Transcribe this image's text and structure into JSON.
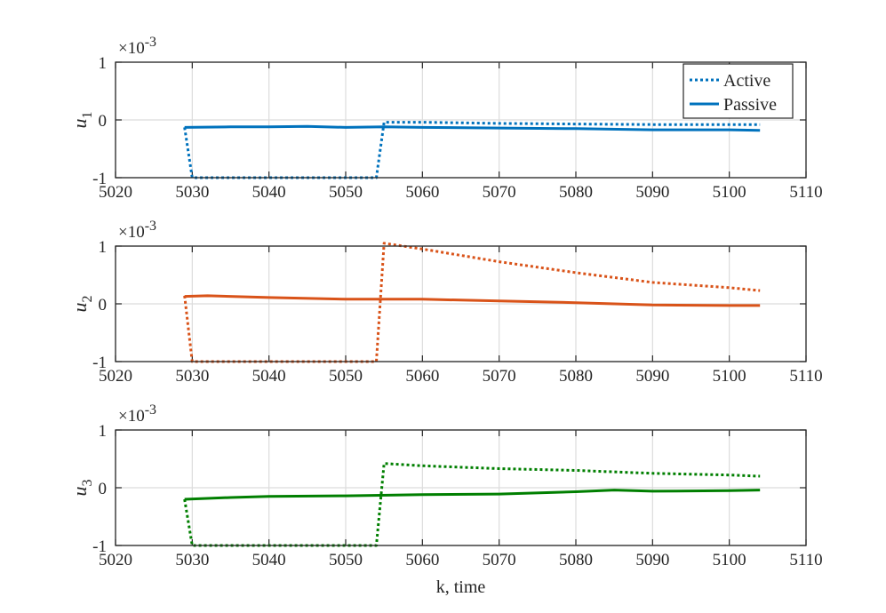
{
  "chart_data": [
    {
      "type": "line",
      "ylabel": "u",
      "ylabel_sub": "1",
      "exponent_label": "×10",
      "exponent_power": "-3",
      "xlim": [
        5020,
        5110
      ],
      "ylim": [
        -1,
        1
      ],
      "x_ticks": [
        "5020",
        "5030",
        "5040",
        "5050",
        "5060",
        "5070",
        "5080",
        "5090",
        "5100",
        "5110"
      ],
      "y_ticks": [
        "-1",
        "0",
        "1"
      ],
      "color": "#0072BD",
      "legend": {
        "position": "top-right",
        "entries": [
          "Active",
          "Passive"
        ]
      },
      "series": [
        {
          "name": "Active",
          "style": "dotted",
          "points": [
            [
              5029,
              -0.13
            ],
            [
              5030,
              -1
            ],
            [
              5054,
              -1
            ],
            [
              5055,
              -0.04
            ],
            [
              5060,
              -0.04
            ],
            [
              5070,
              -0.06
            ],
            [
              5080,
              -0.07
            ],
            [
              5090,
              -0.08
            ],
            [
              5104,
              -0.08
            ]
          ]
        },
        {
          "name": "Passive",
          "style": "solid",
          "points": [
            [
              5029,
              -0.13
            ],
            [
              5035,
              -0.12
            ],
            [
              5040,
              -0.12
            ],
            [
              5045,
              -0.11
            ],
            [
              5050,
              -0.13
            ],
            [
              5055,
              -0.12
            ],
            [
              5060,
              -0.13
            ],
            [
              5070,
              -0.14
            ],
            [
              5080,
              -0.15
            ],
            [
              5090,
              -0.17
            ],
            [
              5100,
              -0.17
            ],
            [
              5104,
              -0.18
            ]
          ]
        }
      ]
    },
    {
      "type": "line",
      "ylabel": "u",
      "ylabel_sub": "2",
      "exponent_label": "×10",
      "exponent_power": "-3",
      "xlim": [
        5020,
        5110
      ],
      "ylim": [
        -1,
        1
      ],
      "x_ticks": [
        "5020",
        "5030",
        "5040",
        "5050",
        "5060",
        "5070",
        "5080",
        "5090",
        "5100",
        "5110"
      ],
      "y_ticks": [
        "-1",
        "0",
        "1"
      ],
      "color": "#D95319",
      "series": [
        {
          "name": "Active",
          "style": "dotted",
          "points": [
            [
              5029,
              0.14
            ],
            [
              5030,
              -1
            ],
            [
              5054,
              -1
            ],
            [
              5055,
              1.05
            ],
            [
              5060,
              0.95
            ],
            [
              5070,
              0.73
            ],
            [
              5080,
              0.54
            ],
            [
              5090,
              0.37
            ],
            [
              5100,
              0.28
            ],
            [
              5104,
              0.23
            ]
          ]
        },
        {
          "name": "Passive",
          "style": "solid",
          "points": [
            [
              5029,
              0.13
            ],
            [
              5032,
              0.14
            ],
            [
              5040,
              0.11
            ],
            [
              5050,
              0.08
            ],
            [
              5055,
              0.08
            ],
            [
              5060,
              0.08
            ],
            [
              5070,
              0.05
            ],
            [
              5080,
              0.02
            ],
            [
              5090,
              -0.02
            ],
            [
              5100,
              -0.03
            ],
            [
              5104,
              -0.03
            ]
          ]
        }
      ]
    },
    {
      "type": "line",
      "ylabel": "u",
      "ylabel_sub": "3",
      "exponent_label": "×10",
      "exponent_power": "-3",
      "xlim": [
        5020,
        5110
      ],
      "ylim": [
        -1,
        1
      ],
      "x_ticks": [
        "5020",
        "5030",
        "5040",
        "5050",
        "5060",
        "5070",
        "5080",
        "5090",
        "5100",
        "5110"
      ],
      "y_ticks": [
        "-1",
        "0",
        "1"
      ],
      "color": "#007F00",
      "xlabel": "k, time",
      "series": [
        {
          "name": "Active",
          "style": "dotted",
          "points": [
            [
              5029,
              -0.2
            ],
            [
              5030,
              -1
            ],
            [
              5054,
              -1
            ],
            [
              5055,
              0.42
            ],
            [
              5060,
              0.38
            ],
            [
              5070,
              0.33
            ],
            [
              5080,
              0.3
            ],
            [
              5090,
              0.25
            ],
            [
              5100,
              0.22
            ],
            [
              5104,
              0.2
            ]
          ]
        },
        {
          "name": "Passive",
          "style": "solid",
          "points": [
            [
              5029,
              -0.2
            ],
            [
              5035,
              -0.17
            ],
            [
              5040,
              -0.15
            ],
            [
              5050,
              -0.14
            ],
            [
              5060,
              -0.12
            ],
            [
              5070,
              -0.11
            ],
            [
              5080,
              -0.07
            ],
            [
              5085,
              -0.04
            ],
            [
              5090,
              -0.06
            ],
            [
              5100,
              -0.05
            ],
            [
              5104,
              -0.04
            ]
          ]
        }
      ]
    }
  ]
}
